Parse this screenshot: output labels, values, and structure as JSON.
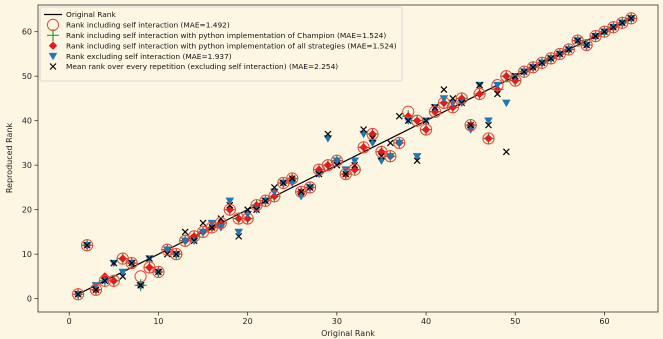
{
  "chart_data": {
    "type": "scatter",
    "xlabel": "Original Rank",
    "ylabel": "Reproduced Rank",
    "xlim": [
      -3.5,
      66
    ],
    "ylim": [
      -3,
      66
    ],
    "xticks": [
      0,
      10,
      20,
      30,
      40,
      50,
      60
    ],
    "yticks": [
      0,
      10,
      20,
      30,
      40,
      50,
      60
    ],
    "grid": false,
    "legend_position": "upper-left",
    "colors": {
      "background": "#fdf6e3",
      "line": "#000000",
      "circle": "#e8463a",
      "plus": "#2ca02c",
      "diamond": "#e41a1c",
      "triangle": "#1f77b4",
      "cross": "#000000"
    },
    "series": [
      {
        "name": "Original Rank",
        "marker": "line",
        "x": [
          1,
          63
        ],
        "y": [
          1,
          63
        ]
      },
      {
        "name": "Rank including self interaction (MAE=1.492)",
        "marker": "circle",
        "x": [
          1,
          2,
          3,
          4,
          5,
          6,
          7,
          8,
          9,
          10,
          11,
          12,
          13,
          14,
          15,
          16,
          17,
          18,
          19,
          20,
          21,
          22,
          23,
          24,
          25,
          26,
          27,
          28,
          29,
          30,
          31,
          32,
          33,
          34,
          35,
          36,
          37,
          38,
          39,
          40,
          41,
          42,
          43,
          44,
          45,
          46,
          47,
          48,
          49,
          50,
          51,
          52,
          53,
          54,
          55,
          56,
          57,
          58,
          59,
          60,
          61,
          62,
          63
        ],
        "y": [
          1,
          12,
          2,
          4,
          4,
          9,
          8,
          5,
          7,
          6,
          11,
          10,
          13,
          14,
          15,
          16,
          17,
          20,
          18,
          18,
          21,
          22,
          23,
          26,
          27,
          24,
          25,
          29,
          30,
          31,
          28,
          29,
          34,
          37,
          33,
          32,
          35,
          42,
          40,
          38,
          42,
          44,
          43,
          45,
          39,
          46,
          36,
          48,
          50,
          49,
          51,
          52,
          53,
          54,
          55,
          56,
          58,
          57,
          59,
          60,
          61,
          62,
          63
        ]
      },
      {
        "name": "Rank including self interaction with python implementation of Champion (MAE=1.524)",
        "marker": "plus",
        "x": [
          1,
          2,
          3,
          4,
          5,
          6,
          7,
          8,
          9,
          10,
          11,
          12,
          13,
          14,
          15,
          16,
          17,
          18,
          19,
          20,
          21,
          22,
          23,
          24,
          25,
          26,
          27,
          28,
          29,
          30,
          31,
          32,
          33,
          34,
          35,
          36,
          37,
          38,
          39,
          40,
          41,
          42,
          43,
          44,
          45,
          46,
          47,
          48,
          49,
          50,
          51,
          52,
          53,
          54,
          55,
          56,
          57,
          58,
          59,
          60,
          61,
          62,
          63
        ],
        "y": [
          1,
          12,
          2,
          4,
          4,
          9,
          8,
          3,
          7,
          6,
          11,
          10,
          13,
          14,
          15,
          16,
          17,
          20,
          18,
          18,
          21,
          22,
          23,
          26,
          27,
          24,
          25,
          29,
          30,
          31,
          28,
          29,
          34,
          37,
          33,
          32,
          35,
          41,
          40,
          38,
          42,
          44,
          43,
          45,
          39,
          46,
          36,
          47,
          50,
          49,
          51,
          52,
          53,
          54,
          55,
          56,
          58,
          57,
          59,
          60,
          61,
          62,
          63
        ]
      },
      {
        "name": "Rank including self interaction with python implementation of all strategies (MAE=1.524)",
        "marker": "diamond",
        "x": [
          1,
          2,
          3,
          4,
          5,
          6,
          7,
          8,
          9,
          10,
          11,
          12,
          13,
          14,
          15,
          16,
          17,
          18,
          19,
          20,
          21,
          22,
          23,
          24,
          25,
          26,
          27,
          28,
          29,
          30,
          31,
          32,
          33,
          34,
          35,
          36,
          37,
          38,
          39,
          40,
          41,
          42,
          43,
          44,
          45,
          46,
          47,
          48,
          49,
          50,
          51,
          52,
          53,
          54,
          55,
          56,
          57,
          58,
          59,
          60,
          61,
          62,
          63
        ],
        "y": [
          1,
          12,
          2,
          5,
          4,
          9,
          8,
          3,
          7,
          6,
          11,
          10,
          13,
          14,
          15,
          16,
          17,
          20,
          18,
          18,
          21,
          22,
          23,
          26,
          27,
          24,
          25,
          29,
          30,
          31,
          28,
          29,
          34,
          37,
          33,
          32,
          35,
          41,
          40,
          38,
          42,
          44,
          43,
          45,
          39,
          46,
          36,
          47,
          50,
          49,
          51,
          52,
          53,
          54,
          55,
          56,
          58,
          57,
          59,
          60,
          61,
          62,
          63
        ]
      },
      {
        "name": "Rank excluding self interaction (MAE=1.937)",
        "marker": "triangle",
        "x": [
          1,
          2,
          3,
          4,
          5,
          6,
          7,
          8,
          9,
          10,
          11,
          12,
          13,
          14,
          15,
          16,
          17,
          18,
          19,
          20,
          21,
          22,
          23,
          24,
          25,
          26,
          27,
          28,
          29,
          30,
          31,
          32,
          33,
          34,
          35,
          36,
          37,
          38,
          39,
          40,
          41,
          42,
          43,
          44,
          45,
          46,
          47,
          48,
          49,
          50,
          51,
          52,
          53,
          54,
          55,
          56,
          57,
          58,
          59,
          60,
          61,
          62,
          63
        ],
        "y": [
          1,
          12,
          3,
          4,
          8,
          6,
          8,
          3,
          9,
          6,
          11,
          10,
          13,
          13,
          15,
          17,
          16,
          22,
          15,
          19,
          20,
          22,
          24,
          26,
          26,
          23,
          25,
          28,
          36,
          31,
          29,
          31,
          37,
          35,
          31,
          32,
          35,
          40,
          32,
          40,
          43,
          45,
          44,
          44,
          38,
          48,
          40,
          48,
          44,
          50,
          51,
          52,
          53,
          54,
          55,
          56,
          58,
          57,
          59,
          60,
          61,
          62,
          63
        ]
      },
      {
        "name": "Mean rank over every repetition (excluding self interaction) (MAE=2.254)",
        "marker": "cross",
        "x": [
          1,
          2,
          3,
          4,
          5,
          6,
          7,
          8,
          9,
          10,
          11,
          12,
          13,
          14,
          15,
          16,
          17,
          18,
          19,
          20,
          21,
          22,
          23,
          24,
          25,
          26,
          27,
          28,
          29,
          30,
          31,
          32,
          33,
          34,
          35,
          36,
          37,
          38,
          39,
          40,
          41,
          42,
          43,
          44,
          45,
          46,
          47,
          48,
          49,
          50,
          51,
          52,
          53,
          54,
          55,
          56,
          57,
          58,
          59,
          60,
          61,
          62,
          63
        ],
        "y": [
          1,
          12,
          2,
          4,
          8,
          5,
          8,
          3,
          9,
          6,
          10,
          10,
          15,
          13,
          17,
          16,
          18,
          21,
          14,
          20,
          20,
          22,
          25,
          26,
          27,
          24,
          25,
          28,
          37,
          30,
          28,
          30,
          38,
          36,
          32,
          35,
          41,
          40,
          31,
          40,
          43,
          47,
          45,
          44,
          39,
          48,
          39,
          46,
          33,
          50,
          51,
          52,
          53,
          54,
          55,
          56,
          58,
          57,
          59,
          60,
          61,
          62,
          63
        ]
      }
    ]
  }
}
